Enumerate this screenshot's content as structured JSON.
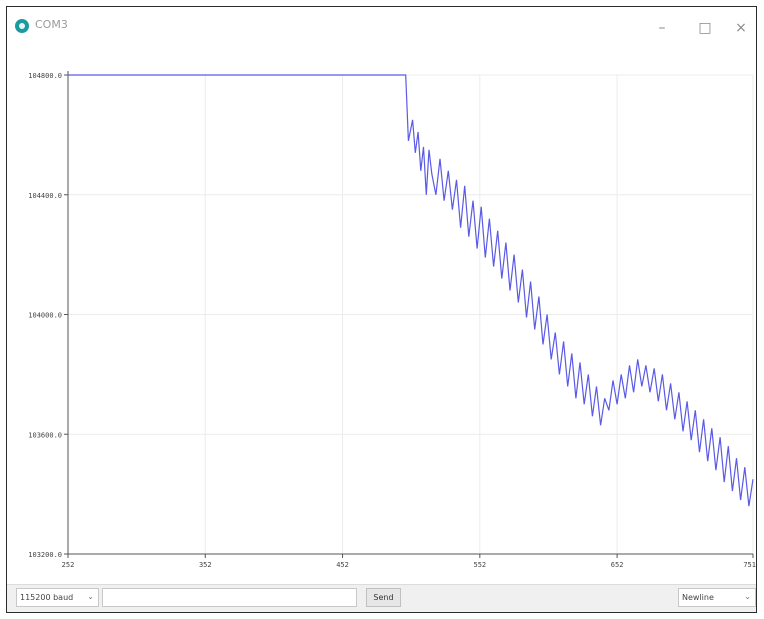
{
  "window": {
    "title": "COM3",
    "minimize_glyph": "–",
    "maximize_glyph": "□",
    "close_glyph": "×",
    "icon": "arduino-icon",
    "accent_color": "#1b9aa0"
  },
  "controls": {
    "baud_label": "115200 baud",
    "message_placeholder": "",
    "send_label": "Send",
    "line_ending_label": "Newline",
    "dropdown_icon": "chevron-down-icon"
  },
  "chart_data": {
    "type": "line",
    "title": "",
    "xlabel": "",
    "ylabel": "",
    "x_ticks": [
      252,
      352,
      452,
      552,
      652,
      751
    ],
    "y_ticks": [
      "103200.0",
      "103600.0",
      "104000.0",
      "104400.0",
      "104800.0"
    ],
    "xlim": [
      252,
      751
    ],
    "ylim": [
      103200,
      104800
    ],
    "grid": true,
    "line_color": "#5a5ae6",
    "series": [
      {
        "values": [
          [
            252,
            104800
          ],
          [
            498,
            104800
          ],
          [
            500,
            104580
          ],
          [
            503,
            104650
          ],
          [
            505,
            104540
          ],
          [
            507,
            104610
          ],
          [
            509,
            104480
          ],
          [
            511,
            104560
          ],
          [
            513,
            104400
          ],
          [
            515,
            104550
          ],
          [
            517,
            104470
          ],
          [
            520,
            104400
          ],
          [
            523,
            104520
          ],
          [
            526,
            104380
          ],
          [
            529,
            104480
          ],
          [
            532,
            104350
          ],
          [
            535,
            104450
          ],
          [
            538,
            104290
          ],
          [
            541,
            104430
          ],
          [
            544,
            104260
          ],
          [
            547,
            104380
          ],
          [
            550,
            104220
          ],
          [
            553,
            104360
          ],
          [
            556,
            104190
          ],
          [
            559,
            104320
          ],
          [
            562,
            104160
          ],
          [
            565,
            104280
          ],
          [
            568,
            104120
          ],
          [
            571,
            104240
          ],
          [
            574,
            104080
          ],
          [
            577,
            104200
          ],
          [
            580,
            104040
          ],
          [
            583,
            104150
          ],
          [
            586,
            103990
          ],
          [
            589,
            104110
          ],
          [
            592,
            103950
          ],
          [
            595,
            104060
          ],
          [
            598,
            103900
          ],
          [
            601,
            104000
          ],
          [
            604,
            103850
          ],
          [
            607,
            103940
          ],
          [
            610,
            103800
          ],
          [
            613,
            103910
          ],
          [
            616,
            103760
          ],
          [
            619,
            103870
          ],
          [
            622,
            103720
          ],
          [
            625,
            103840
          ],
          [
            628,
            103700
          ],
          [
            631,
            103800
          ],
          [
            634,
            103660
          ],
          [
            637,
            103760
          ],
          [
            640,
            103630
          ],
          [
            643,
            103720
          ],
          [
            646,
            103680
          ],
          [
            649,
            103780
          ],
          [
            652,
            103700
          ],
          [
            655,
            103800
          ],
          [
            658,
            103720
          ],
          [
            661,
            103830
          ],
          [
            664,
            103740
          ],
          [
            667,
            103850
          ],
          [
            670,
            103760
          ],
          [
            673,
            103830
          ],
          [
            676,
            103740
          ],
          [
            679,
            103820
          ],
          [
            682,
            103710
          ],
          [
            685,
            103800
          ],
          [
            688,
            103680
          ],
          [
            691,
            103770
          ],
          [
            694,
            103650
          ],
          [
            697,
            103740
          ],
          [
            700,
            103610
          ],
          [
            703,
            103710
          ],
          [
            706,
            103580
          ],
          [
            709,
            103680
          ],
          [
            712,
            103540
          ],
          [
            715,
            103650
          ],
          [
            718,
            103510
          ],
          [
            721,
            103620
          ],
          [
            724,
            103480
          ],
          [
            727,
            103590
          ],
          [
            730,
            103440
          ],
          [
            733,
            103560
          ],
          [
            736,
            103410
          ],
          [
            739,
            103520
          ],
          [
            742,
            103380
          ],
          [
            745,
            103490
          ],
          [
            748,
            103360
          ],
          [
            751,
            103450
          ]
        ]
      }
    ]
  }
}
